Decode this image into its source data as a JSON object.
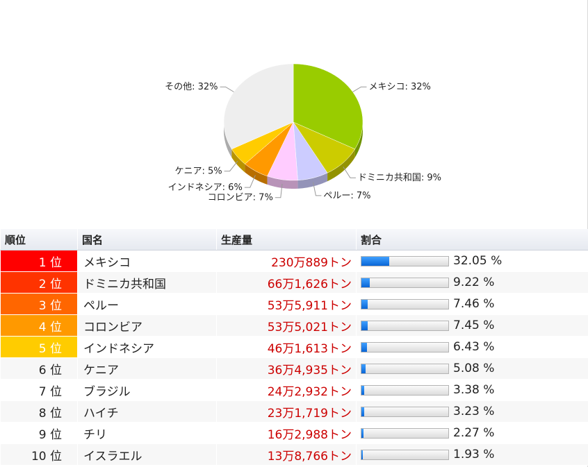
{
  "chart_data": {
    "type": "pie",
    "slices": [
      {
        "label": "メキシコ: 32%",
        "value": 32,
        "color": "#99cc00"
      },
      {
        "label": "ドミニカ共和国: 9%",
        "value": 9,
        "color": "#cccc00"
      },
      {
        "label": "ペルー: 7%",
        "value": 7,
        "color": "#ccccff"
      },
      {
        "label": "コロンビア: 7%",
        "value": 7,
        "color": "#ffccff"
      },
      {
        "label": "インドネシア: 6%",
        "value": 6,
        "color": "#ff9900"
      },
      {
        "label": "ケニア: 5%",
        "value": 5,
        "color": "#ffcc00"
      },
      {
        "label": "その他: 32%",
        "value": 32,
        "color": "#eeeeee"
      }
    ]
  },
  "table": {
    "headers": [
      "順位",
      "国名",
      "生産量",
      "割合"
    ],
    "rows": [
      {
        "rank": "1 位",
        "country": "メキシコ",
        "amount": "230万889トン",
        "share": "32.05 %",
        "share_value": 32.05,
        "rank_color": "#ff0000",
        "rank_text_color": "#ffffff"
      },
      {
        "rank": "2 位",
        "country": "ドミニカ共和国",
        "amount": "66万1,626トン",
        "share": "9.22 %",
        "share_value": 9.22,
        "rank_color": "#ff3300",
        "rank_text_color": "#ffffff"
      },
      {
        "rank": "3 位",
        "country": "ペルー",
        "amount": "53万5,911トン",
        "share": "7.46 %",
        "share_value": 7.46,
        "rank_color": "#ff6600",
        "rank_text_color": "#ffffff"
      },
      {
        "rank": "4 位",
        "country": "コロンビア",
        "amount": "53万5,021トン",
        "share": "7.45 %",
        "share_value": 7.45,
        "rank_color": "#ff9900",
        "rank_text_color": "#ffffff"
      },
      {
        "rank": "5 位",
        "country": "インドネシア",
        "amount": "46万1,613トン",
        "share": "6.43 %",
        "share_value": 6.43,
        "rank_color": "#ffcc00",
        "rank_text_color": "#ffffff"
      },
      {
        "rank": "6 位",
        "country": "ケニア",
        "amount": "36万4,935トン",
        "share": "5.08 %",
        "share_value": 5.08
      },
      {
        "rank": "7 位",
        "country": "ブラジル",
        "amount": "24万2,932トン",
        "share": "3.38 %",
        "share_value": 3.38
      },
      {
        "rank": "8 位",
        "country": "ハイチ",
        "amount": "23万1,719トン",
        "share": "3.23 %",
        "share_value": 3.23
      },
      {
        "rank": "9 位",
        "country": "チリ",
        "amount": "16万2,988トン",
        "share": "2.27 %",
        "share_value": 2.27
      },
      {
        "rank": "10 位",
        "country": "イスラエル",
        "amount": "13万8,766トン",
        "share": "1.93 %",
        "share_value": 1.93
      }
    ]
  }
}
